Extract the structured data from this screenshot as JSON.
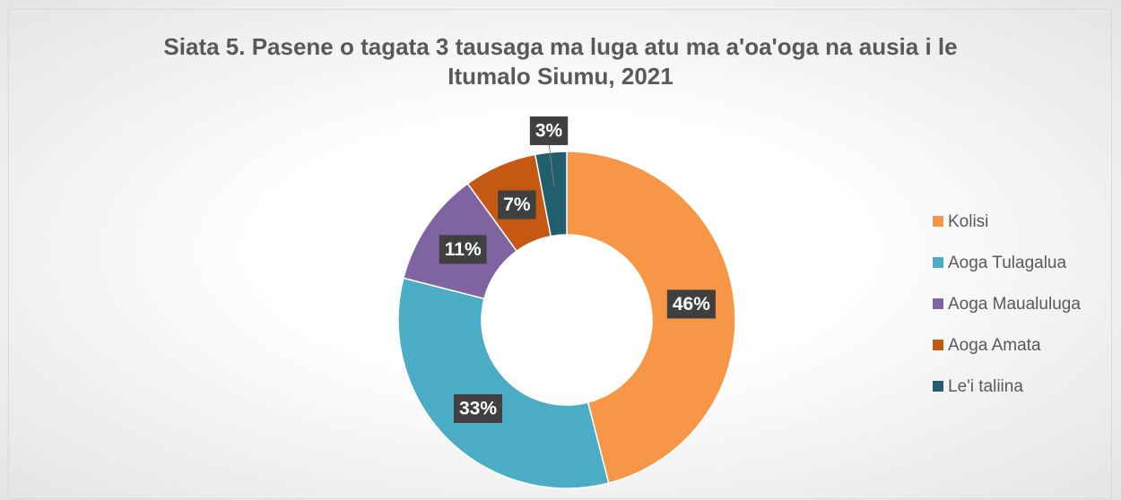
{
  "chart_data": {
    "type": "donut",
    "title": "Siata 5. Pasene o tagata 3 tausaga ma luga atu ma a'oa'oga na ausia i le Itumalo Siumu, 2021",
    "categories": [
      "Kolisi",
      "Aoga Tulagalua",
      "Aoga Maualuluga",
      "Aoga Amata",
      "Le'i taliina"
    ],
    "values": [
      46,
      33,
      11,
      7,
      3
    ],
    "value_labels": [
      "46%",
      "33%",
      "11%",
      "7%",
      "3%"
    ],
    "colors": [
      "#f79646",
      "#4bacc6",
      "#8064a2",
      "#c65911",
      "#215e6e"
    ],
    "legend": "right"
  }
}
